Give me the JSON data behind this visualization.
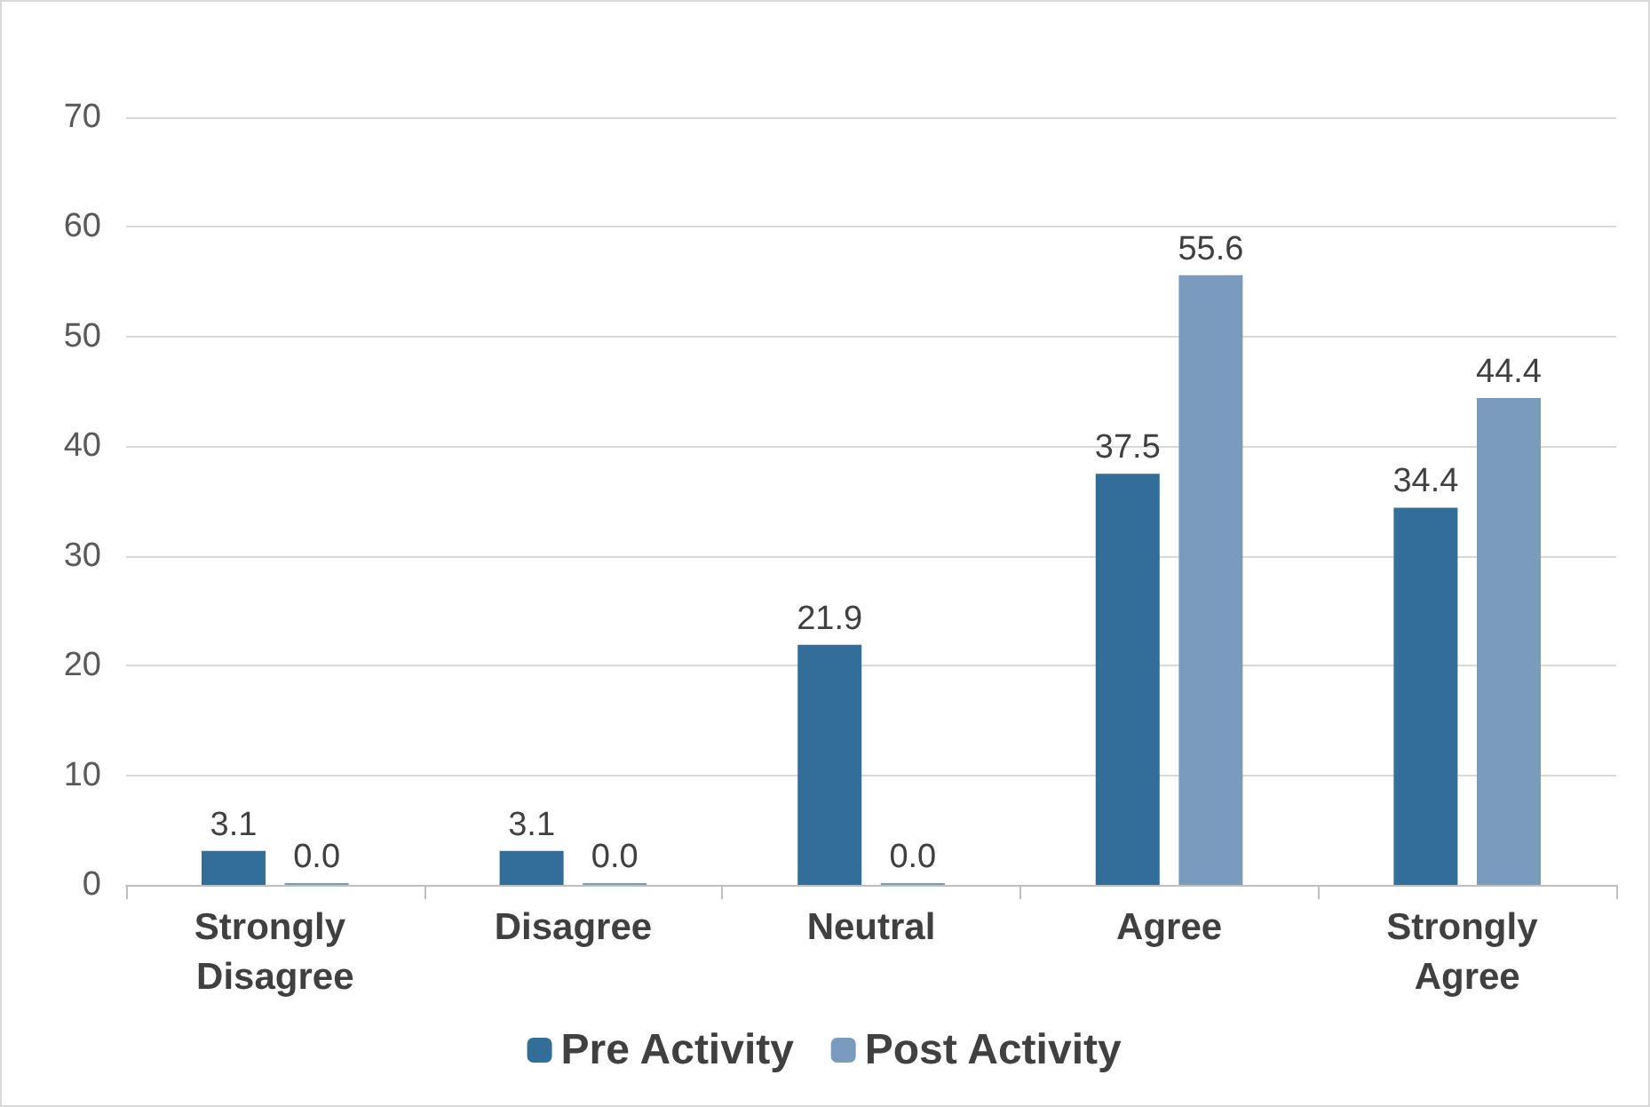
{
  "chart_data": {
    "type": "bar",
    "categories": [
      "Strongly Disagree",
      "Disagree",
      "Neutral",
      "Agree",
      "Strongly Agree"
    ],
    "series": [
      {
        "name": "Pre Activity",
        "color": "#336e99",
        "values": [
          3.1,
          3.1,
          21.9,
          37.5,
          34.4
        ],
        "value_labels": [
          "3.1",
          "3.1",
          "21.9",
          "37.5",
          "34.4"
        ]
      },
      {
        "name": "Post Activity",
        "color": "#7a9bbb",
        "values": [
          0.0,
          0.0,
          0.0,
          55.6,
          44.4
        ],
        "value_labels": [
          "0.0",
          "0.0",
          "0.0",
          "55.6",
          "44.4"
        ]
      }
    ],
    "ylim": [
      0,
      70
    ],
    "yticks": [
      0,
      10,
      20,
      30,
      40,
      50,
      60,
      70
    ],
    "grid": "y",
    "legend": "bottom"
  }
}
